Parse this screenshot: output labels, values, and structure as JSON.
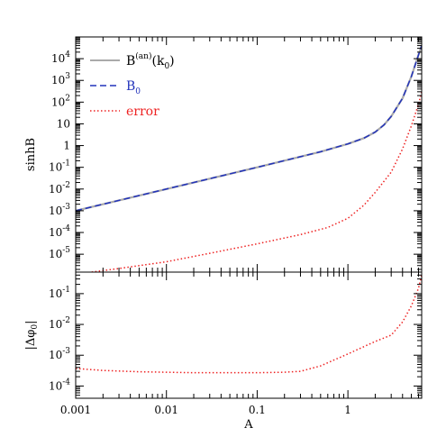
{
  "chart_data": [
    {
      "type": "line",
      "xscale": "log",
      "yscale": "log",
      "xlim": [
        0.001,
        6.5
      ],
      "ylim": [
        1.5e-06,
        100000.0
      ],
      "ylabel": "sinhB",
      "x_tick_labels": [],
      "y_tick_labels": [
        {
          "value": 1e-05,
          "mant": "10",
          "exp": "-5"
        },
        {
          "value": 0.0001,
          "mant": "10",
          "exp": "-4"
        },
        {
          "value": 0.001,
          "mant": "10",
          "exp": "-3"
        },
        {
          "value": 0.01,
          "mant": "10",
          "exp": "-2"
        },
        {
          "value": 0.1,
          "mant": "10",
          "exp": "-1"
        },
        {
          "value": 1,
          "mant": "1",
          "exp": ""
        },
        {
          "value": 10,
          "mant": "10",
          "exp": ""
        },
        {
          "value": 100,
          "mant": "10",
          "exp": "2"
        },
        {
          "value": 1000,
          "mant": "10",
          "exp": "3"
        },
        {
          "value": 10000,
          "mant": "10",
          "exp": "4"
        }
      ],
      "legend": {
        "position": "top-left"
      },
      "series": [
        {
          "id": "analytic",
          "name_main": "B",
          "name_sup": "(an)",
          "name_tail": "(k",
          "name_sub": "0",
          "name_close": ")",
          "color": "#aaaaaa",
          "style": "solid",
          "x": [
            0.001,
            0.01,
            0.1,
            0.5,
            1.0,
            1.5,
            2.0,
            2.5,
            3.0,
            4.0,
            5.0,
            6.0,
            6.5
          ],
          "y": [
            0.001,
            0.01,
            0.1,
            0.52,
            1.2,
            2.2,
            4.2,
            9.0,
            22,
            150,
            1500,
            15000,
            40000
          ]
        },
        {
          "id": "b0",
          "name_main": "B",
          "name_sub": "0",
          "color": "#2233bb",
          "style": "dashed",
          "x": [
            0.001,
            0.01,
            0.1,
            0.5,
            1.0,
            1.5,
            2.0,
            2.5,
            3.0,
            4.0,
            5.0,
            6.0,
            6.5
          ],
          "y": [
            0.001,
            0.01,
            0.1,
            0.52,
            1.2,
            2.2,
            4.2,
            9.0,
            22,
            150,
            1500,
            15000,
            40000
          ]
        },
        {
          "id": "error",
          "name_main": "error",
          "color": "#ee2222",
          "style": "dotted",
          "x": [
            0.0015,
            0.003,
            0.01,
            0.03,
            0.1,
            0.3,
            0.6,
            1.0,
            1.5,
            2.0,
            3.0,
            4.0,
            5.0,
            6.0,
            6.5
          ],
          "y": [
            1.5e-06,
            2.2e-06,
            4.5e-06,
            1.1e-05,
            3e-05,
            8e-05,
            0.00017,
            0.00045,
            0.0018,
            0.007,
            0.06,
            0.7,
            8,
            80,
            300
          ]
        }
      ]
    },
    {
      "type": "line",
      "xscale": "log",
      "yscale": "log",
      "xlim": [
        0.001,
        6.5
      ],
      "ylim": [
        4e-05,
        0.5
      ],
      "xlabel": "A",
      "ylabel": "|Δφ",
      "ylabel_sub": "0",
      "ylabel_close": "|",
      "x_tick_labels": [
        {
          "value": 0.001,
          "label": "0.001"
        },
        {
          "value": 0.01,
          "label": "0.01"
        },
        {
          "value": 0.1,
          "label": "0.1"
        },
        {
          "value": 1,
          "label": "1"
        }
      ],
      "y_tick_labels": [
        {
          "value": 0.0001,
          "mant": "10",
          "exp": "-4"
        },
        {
          "value": 0.001,
          "mant": "10",
          "exp": "-3"
        },
        {
          "value": 0.01,
          "mant": "10",
          "exp": "-2"
        },
        {
          "value": 0.1,
          "mant": "10",
          "exp": "-1"
        }
      ],
      "series": [
        {
          "id": "phase-error",
          "color": "#ee2222",
          "style": "dotted",
          "x": [
            0.001,
            0.002,
            0.005,
            0.01,
            0.02,
            0.05,
            0.1,
            0.2,
            0.3,
            0.5,
            1.0,
            2.0,
            3.0,
            4.0,
            5.0,
            6.0,
            6.5
          ],
          "y": [
            0.00037,
            0.00032,
            0.00029,
            0.00028,
            0.00027,
            0.00027,
            0.00027,
            0.00028,
            0.0003,
            0.00045,
            0.0011,
            0.0028,
            0.0045,
            0.012,
            0.04,
            0.15,
            0.4
          ]
        }
      ]
    }
  ]
}
